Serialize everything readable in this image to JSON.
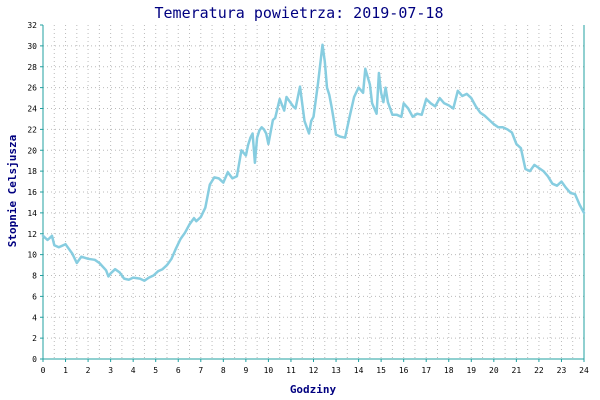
{
  "chart_data": {
    "type": "line",
    "title": "Temeratura powietrza: 2019-07-18",
    "xlabel": "Godziny",
    "ylabel": "Stopnie Celsjusza",
    "xlim": [
      0,
      24
    ],
    "ylim": [
      0,
      32
    ],
    "grid": true,
    "x_ticks": [
      0,
      1,
      2,
      3,
      4,
      5,
      6,
      7,
      8,
      9,
      10,
      11,
      12,
      13,
      14,
      15,
      16,
      17,
      18,
      19,
      20,
      21,
      22,
      23,
      24
    ],
    "y_ticks": [
      0,
      2,
      4,
      6,
      8,
      10,
      12,
      14,
      16,
      18,
      20,
      22,
      24,
      26,
      28,
      30,
      32
    ],
    "series": [
      {
        "color": "#87cde0",
        "x": [
          0,
          0.2,
          0.3,
          0.4,
          0.5,
          0.7,
          1.0,
          1.3,
          1.5,
          1.7,
          2.0,
          2.3,
          2.5,
          2.8,
          2.9,
          3.0,
          3.2,
          3.4,
          3.6,
          3.8,
          4.0,
          4.3,
          4.5,
          4.7,
          4.9,
          5.1,
          5.3,
          5.5,
          5.7,
          5.9,
          6.1,
          6.3,
          6.5,
          6.7,
          6.8,
          7.0,
          7.2,
          7.4,
          7.6,
          7.8,
          8.0,
          8.2,
          8.4,
          8.6,
          8.8,
          9.0,
          9.1,
          9.2,
          9.3,
          9.4,
          9.5,
          9.6,
          9.7,
          9.8,
          9.9,
          10.0,
          10.2,
          10.3,
          10.5,
          10.7,
          10.8,
          10.9,
          11.0,
          11.1,
          11.2,
          11.4,
          11.6,
          11.8,
          11.9,
          12.0,
          12.2,
          12.4,
          12.5,
          12.6,
          12.7,
          12.8,
          12.9,
          13.0,
          13.2,
          13.4,
          13.6,
          13.8,
          14.0,
          14.2,
          14.3,
          14.5,
          14.6,
          14.8,
          14.9,
          15.0,
          15.1,
          15.2,
          15.3,
          15.5,
          15.7,
          15.9,
          16.0,
          16.2,
          16.4,
          16.6,
          16.8,
          17.0,
          17.2,
          17.4,
          17.6,
          17.8,
          18.0,
          18.2,
          18.4,
          18.6,
          18.8,
          19.0,
          19.2,
          19.4,
          19.6,
          19.8,
          20.0,
          20.2,
          20.4,
          20.6,
          20.8,
          21.0,
          21.2,
          21.4,
          21.6,
          21.8,
          22.0,
          22.2,
          22.4,
          22.6,
          22.8,
          23.0,
          23.2,
          23.4,
          23.6,
          23.8,
          24.0
        ],
        "y": [
          11.8,
          11.4,
          11.6,
          11.8,
          10.9,
          10.7,
          11.0,
          10.1,
          9.2,
          9.8,
          9.6,
          9.5,
          9.2,
          8.5,
          7.9,
          8.2,
          8.6,
          8.3,
          7.7,
          7.6,
          7.8,
          7.7,
          7.5,
          7.8,
          8.0,
          8.4,
          8.6,
          9.0,
          9.6,
          10.6,
          11.5,
          12.1,
          12.9,
          13.5,
          13.2,
          13.6,
          14.5,
          16.7,
          17.4,
          17.3,
          16.9,
          17.9,
          17.3,
          17.5,
          20.0,
          19.5,
          20.5,
          21.2,
          21.6,
          18.8,
          21.2,
          21.9,
          22.2,
          22.0,
          21.6,
          20.6,
          22.9,
          23.1,
          24.9,
          23.8,
          25.1,
          24.8,
          24.5,
          24.2,
          24.0,
          26.1,
          22.8,
          21.6,
          22.8,
          23.2,
          26.4,
          30.1,
          28.5,
          26.0,
          25.3,
          24.2,
          22.9,
          21.5,
          21.3,
          21.2,
          23.2,
          25.1,
          26.0,
          25.5,
          27.8,
          26.3,
          24.5,
          23.5,
          27.4,
          25.5,
          24.6,
          26.0,
          24.6,
          23.4,
          23.4,
          23.2,
          24.5,
          24.0,
          23.2,
          23.5,
          23.4,
          24.9,
          24.5,
          24.2,
          25.0,
          24.5,
          24.3,
          24.0,
          25.7,
          25.2,
          25.4,
          25.0,
          24.2,
          23.6,
          23.3,
          22.9,
          22.5,
          22.2,
          22.2,
          22.0,
          21.7,
          20.6,
          20.2,
          18.2,
          18.0,
          18.6,
          18.3,
          18.0,
          17.5,
          16.8,
          16.6,
          17.0,
          16.4,
          15.9,
          15.8,
          14.8,
          14.0
        ]
      }
    ]
  }
}
